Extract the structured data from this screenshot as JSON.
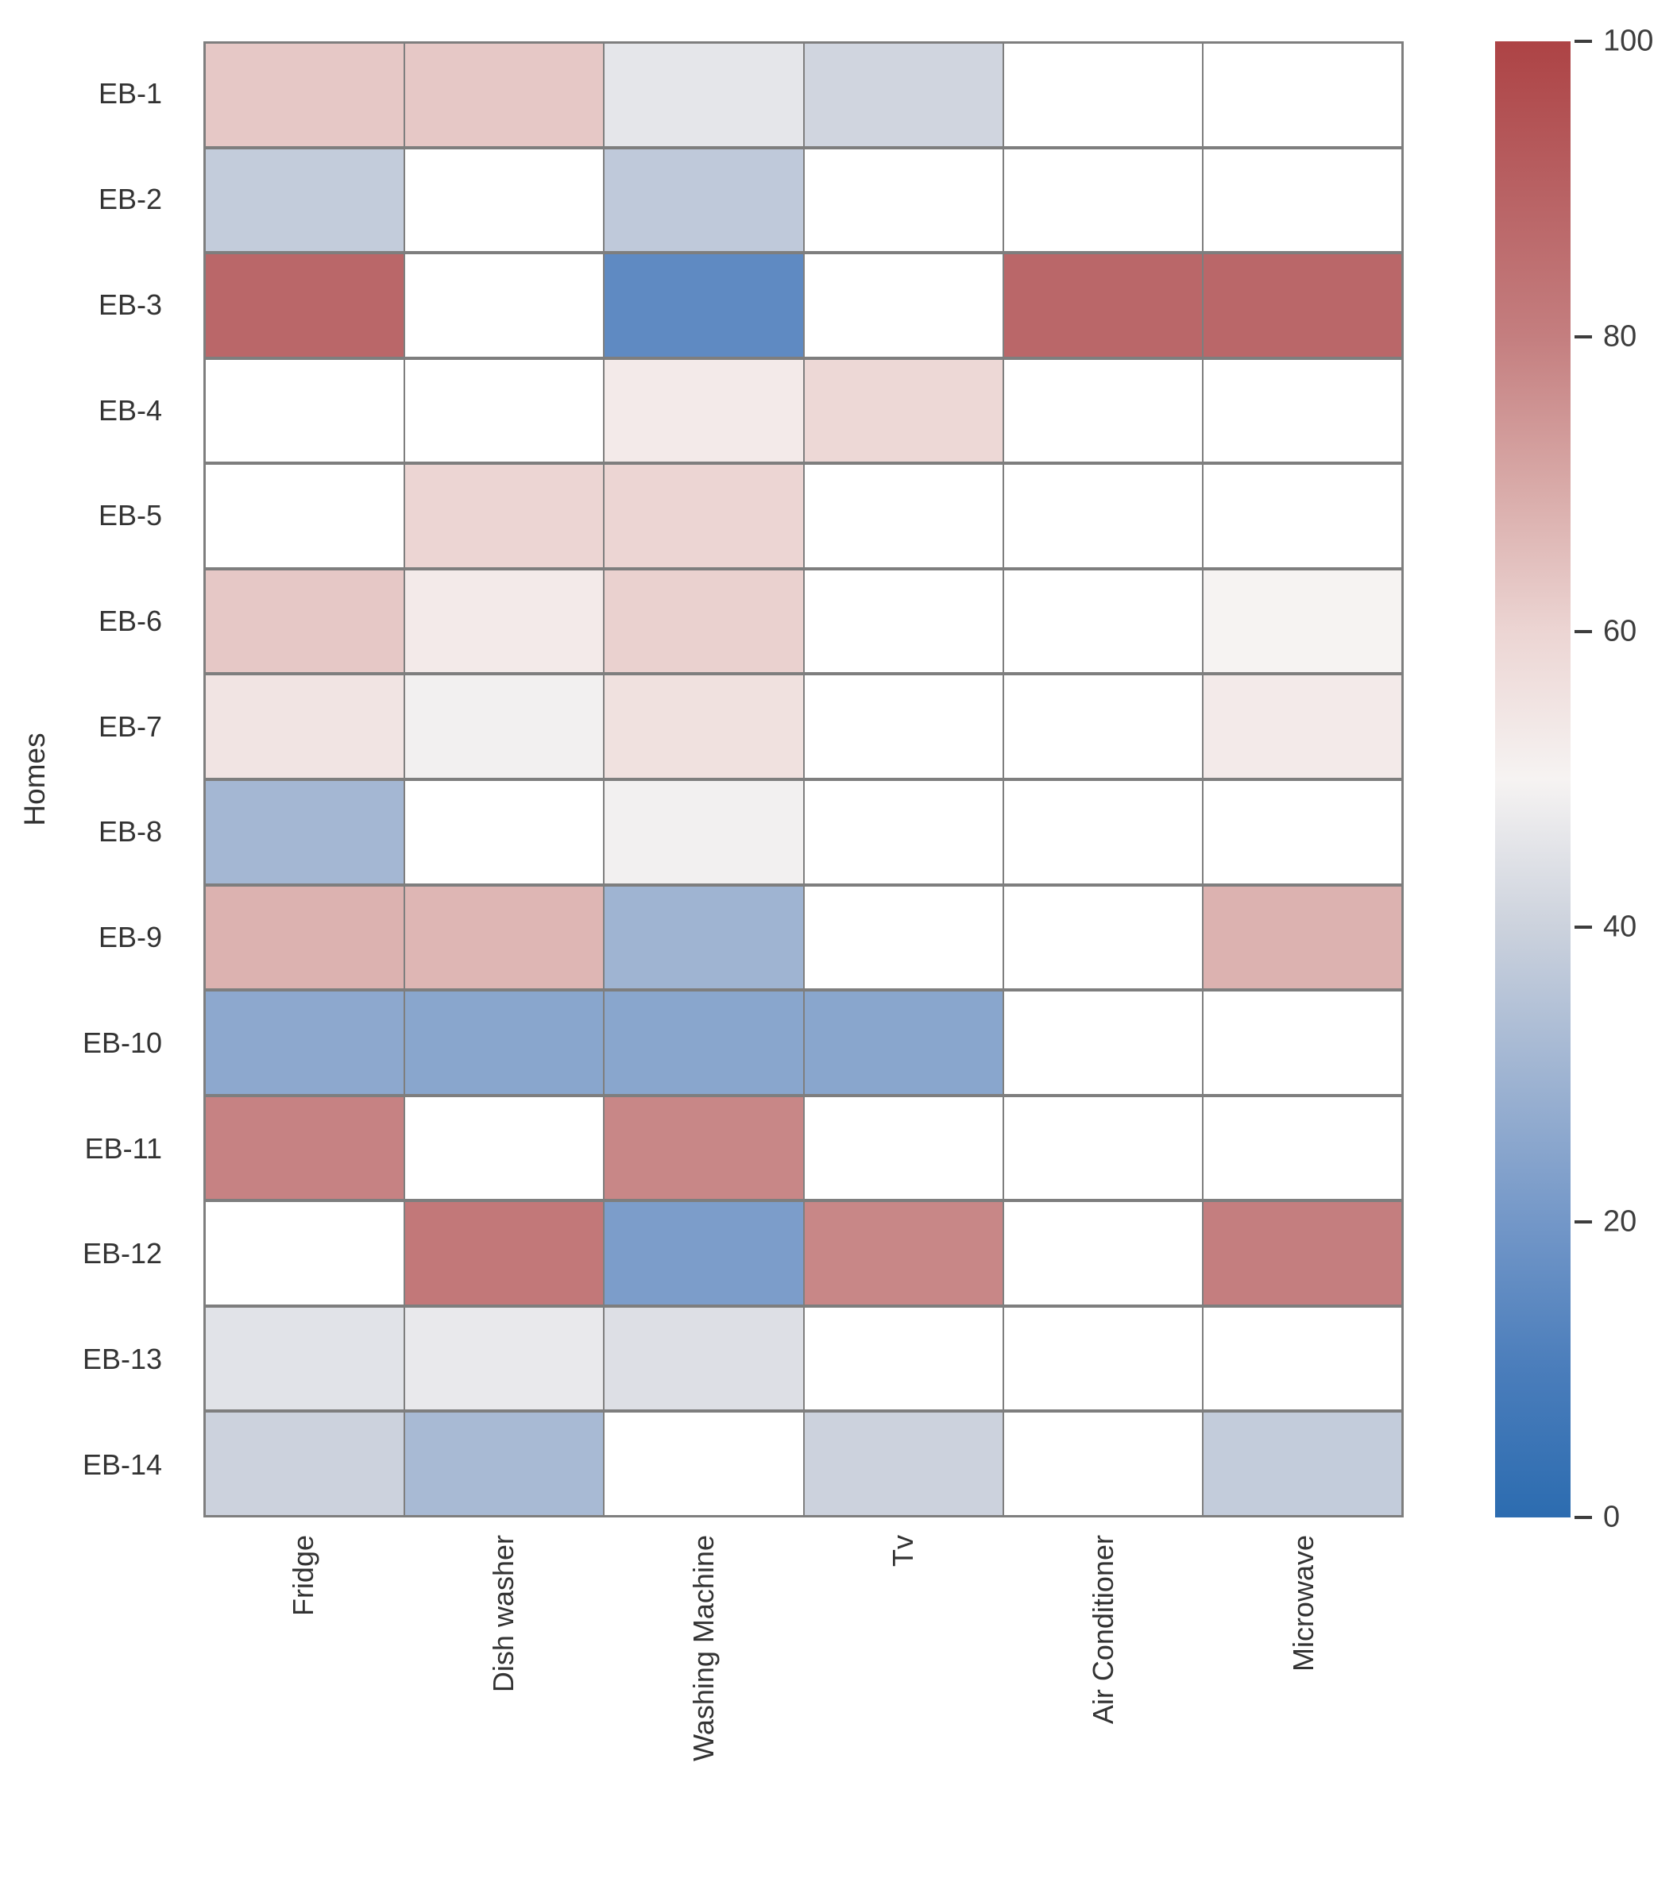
{
  "chart_data": {
    "type": "heatmap",
    "title": "",
    "xlabel": "",
    "ylabel": "Homes",
    "rows": [
      "EB-1",
      "EB-2",
      "EB-3",
      "EB-4",
      "EB-5",
      "EB-6",
      "EB-7",
      "EB-8",
      "EB-9",
      "EB-10",
      "EB-11",
      "EB-12",
      "EB-13",
      "EB-14"
    ],
    "columns": [
      "Fridge",
      "Dish washer",
      "Washing Machine",
      "Tv",
      "Air Conditioner",
      "Microwave"
    ],
    "values": [
      [
        63,
        63,
        46,
        41,
        null,
        null
      ],
      [
        38,
        null,
        37,
        null,
        null,
        null
      ],
      [
        88,
        null,
        15,
        null,
        88,
        88
      ],
      [
        null,
        null,
        53,
        59,
        null,
        null
      ],
      [
        null,
        60,
        60,
        null,
        null,
        null
      ],
      [
        63,
        53,
        61,
        null,
        null,
        50
      ],
      [
        55,
        49,
        56,
        null,
        null,
        53
      ],
      [
        31,
        null,
        49,
        null,
        null,
        null
      ],
      [
        68,
        67,
        30,
        null,
        null,
        68
      ],
      [
        26,
        25,
        25,
        25,
        null,
        null
      ],
      [
        79,
        null,
        78,
        null,
        null,
        null
      ],
      [
        null,
        82,
        22,
        78,
        null,
        80
      ],
      [
        45,
        47,
        44,
        null,
        null,
        null
      ],
      [
        40,
        32,
        null,
        40,
        null,
        38
      ]
    ],
    "colorbar": {
      "min": 0,
      "max": 100,
      "ticks": [
        100,
        80,
        60,
        40,
        20,
        0
      ]
    },
    "colormap": {
      "name": "vlag-like-diverging",
      "anchors": [
        {
          "v": 0,
          "c": "#2c6cb0"
        },
        {
          "v": 10,
          "c": "#4a7dbb"
        },
        {
          "v": 20,
          "c": "#7397c8"
        },
        {
          "v": 30,
          "c": "#9fb4d2"
        },
        {
          "v": 40,
          "c": "#ccd2dd"
        },
        {
          "v": 50,
          "c": "#f6f3f2"
        },
        {
          "v": 60,
          "c": "#ecd5d3"
        },
        {
          "v": 70,
          "c": "#d8a9a7"
        },
        {
          "v": 80,
          "c": "#c47e7f"
        },
        {
          "v": 90,
          "c": "#b86163"
        },
        {
          "v": 100,
          "c": "#ad4345"
        }
      ]
    },
    "null_color": "#ffffff",
    "grid_line_color": "#7e7e7e",
    "legend_position": "right-colorbar",
    "grid": true
  }
}
